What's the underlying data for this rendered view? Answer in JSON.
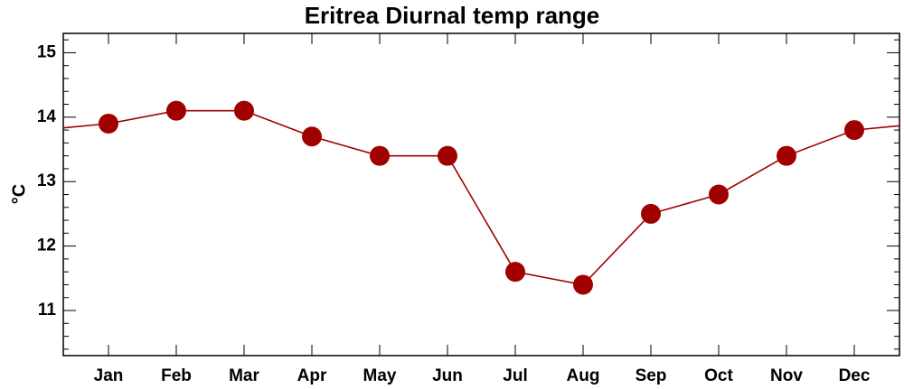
{
  "chart_data": {
    "type": "line",
    "title": "Eritrea Diurnal temp range",
    "xlabel": "",
    "ylabel": "°C",
    "categories": [
      "Jan",
      "Feb",
      "Mar",
      "Apr",
      "May",
      "Jun",
      "Jul",
      "Aug",
      "Sep",
      "Oct",
      "Nov",
      "Dec"
    ],
    "series": [
      {
        "values": [
          13.9,
          14.1,
          14.1,
          13.7,
          13.4,
          13.4,
          11.6,
          11.4,
          12.5,
          12.8,
          13.4,
          13.8
        ]
      }
    ],
    "ylim": [
      10.3,
      15.3
    ],
    "yticks": [
      11,
      12,
      13,
      14,
      15
    ],
    "yminor_step": 0.2,
    "grid": false,
    "colors": {
      "line": "#a00000",
      "marker": "#a00000",
      "axes": "#000000"
    }
  }
}
